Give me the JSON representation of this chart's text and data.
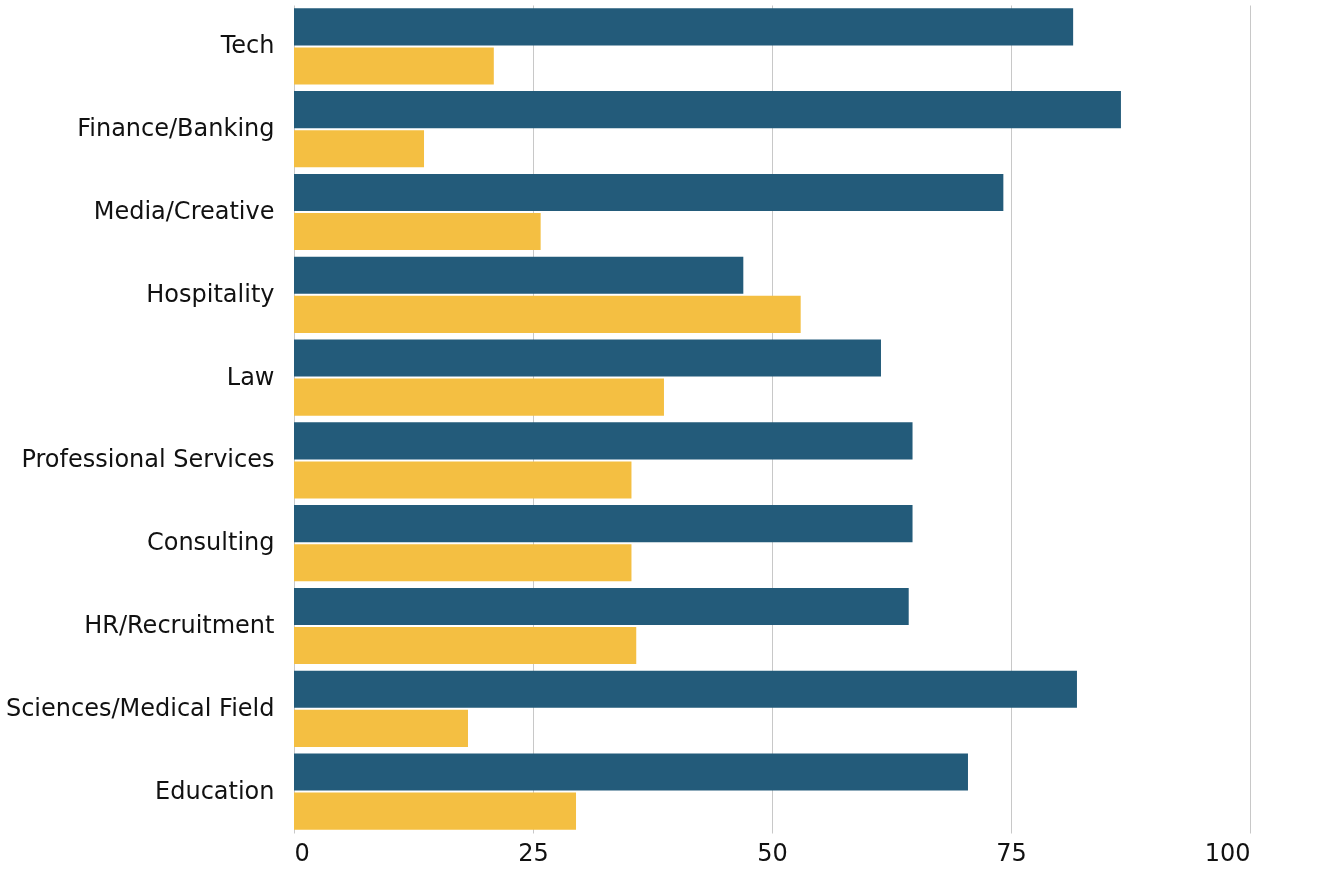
{
  "chart_data": {
    "type": "bar",
    "orientation": "horizontal",
    "categories": [
      "Tech",
      "Finance/Banking",
      "Media/Creative",
      "Hospitality",
      "Law",
      "Professional Services",
      "Consulting",
      "HR/Recruitment",
      "Sciences/Medical Field",
      "Education"
    ],
    "series": [
      {
        "color": "#235b7a",
        "values": [
          81.5,
          86.5,
          74.2,
          47.0,
          61.4,
          64.7,
          64.7,
          64.3,
          81.9,
          70.5
        ]
      },
      {
        "color": "#f4bf42",
        "values": [
          20.9,
          13.6,
          25.8,
          53.0,
          38.7,
          35.3,
          35.3,
          35.8,
          18.2,
          29.5
        ]
      }
    ],
    "xlim": [
      0,
      100
    ],
    "xticks": [
      0,
      25,
      50,
      75,
      100
    ],
    "grid": "x",
    "legend": false
  }
}
